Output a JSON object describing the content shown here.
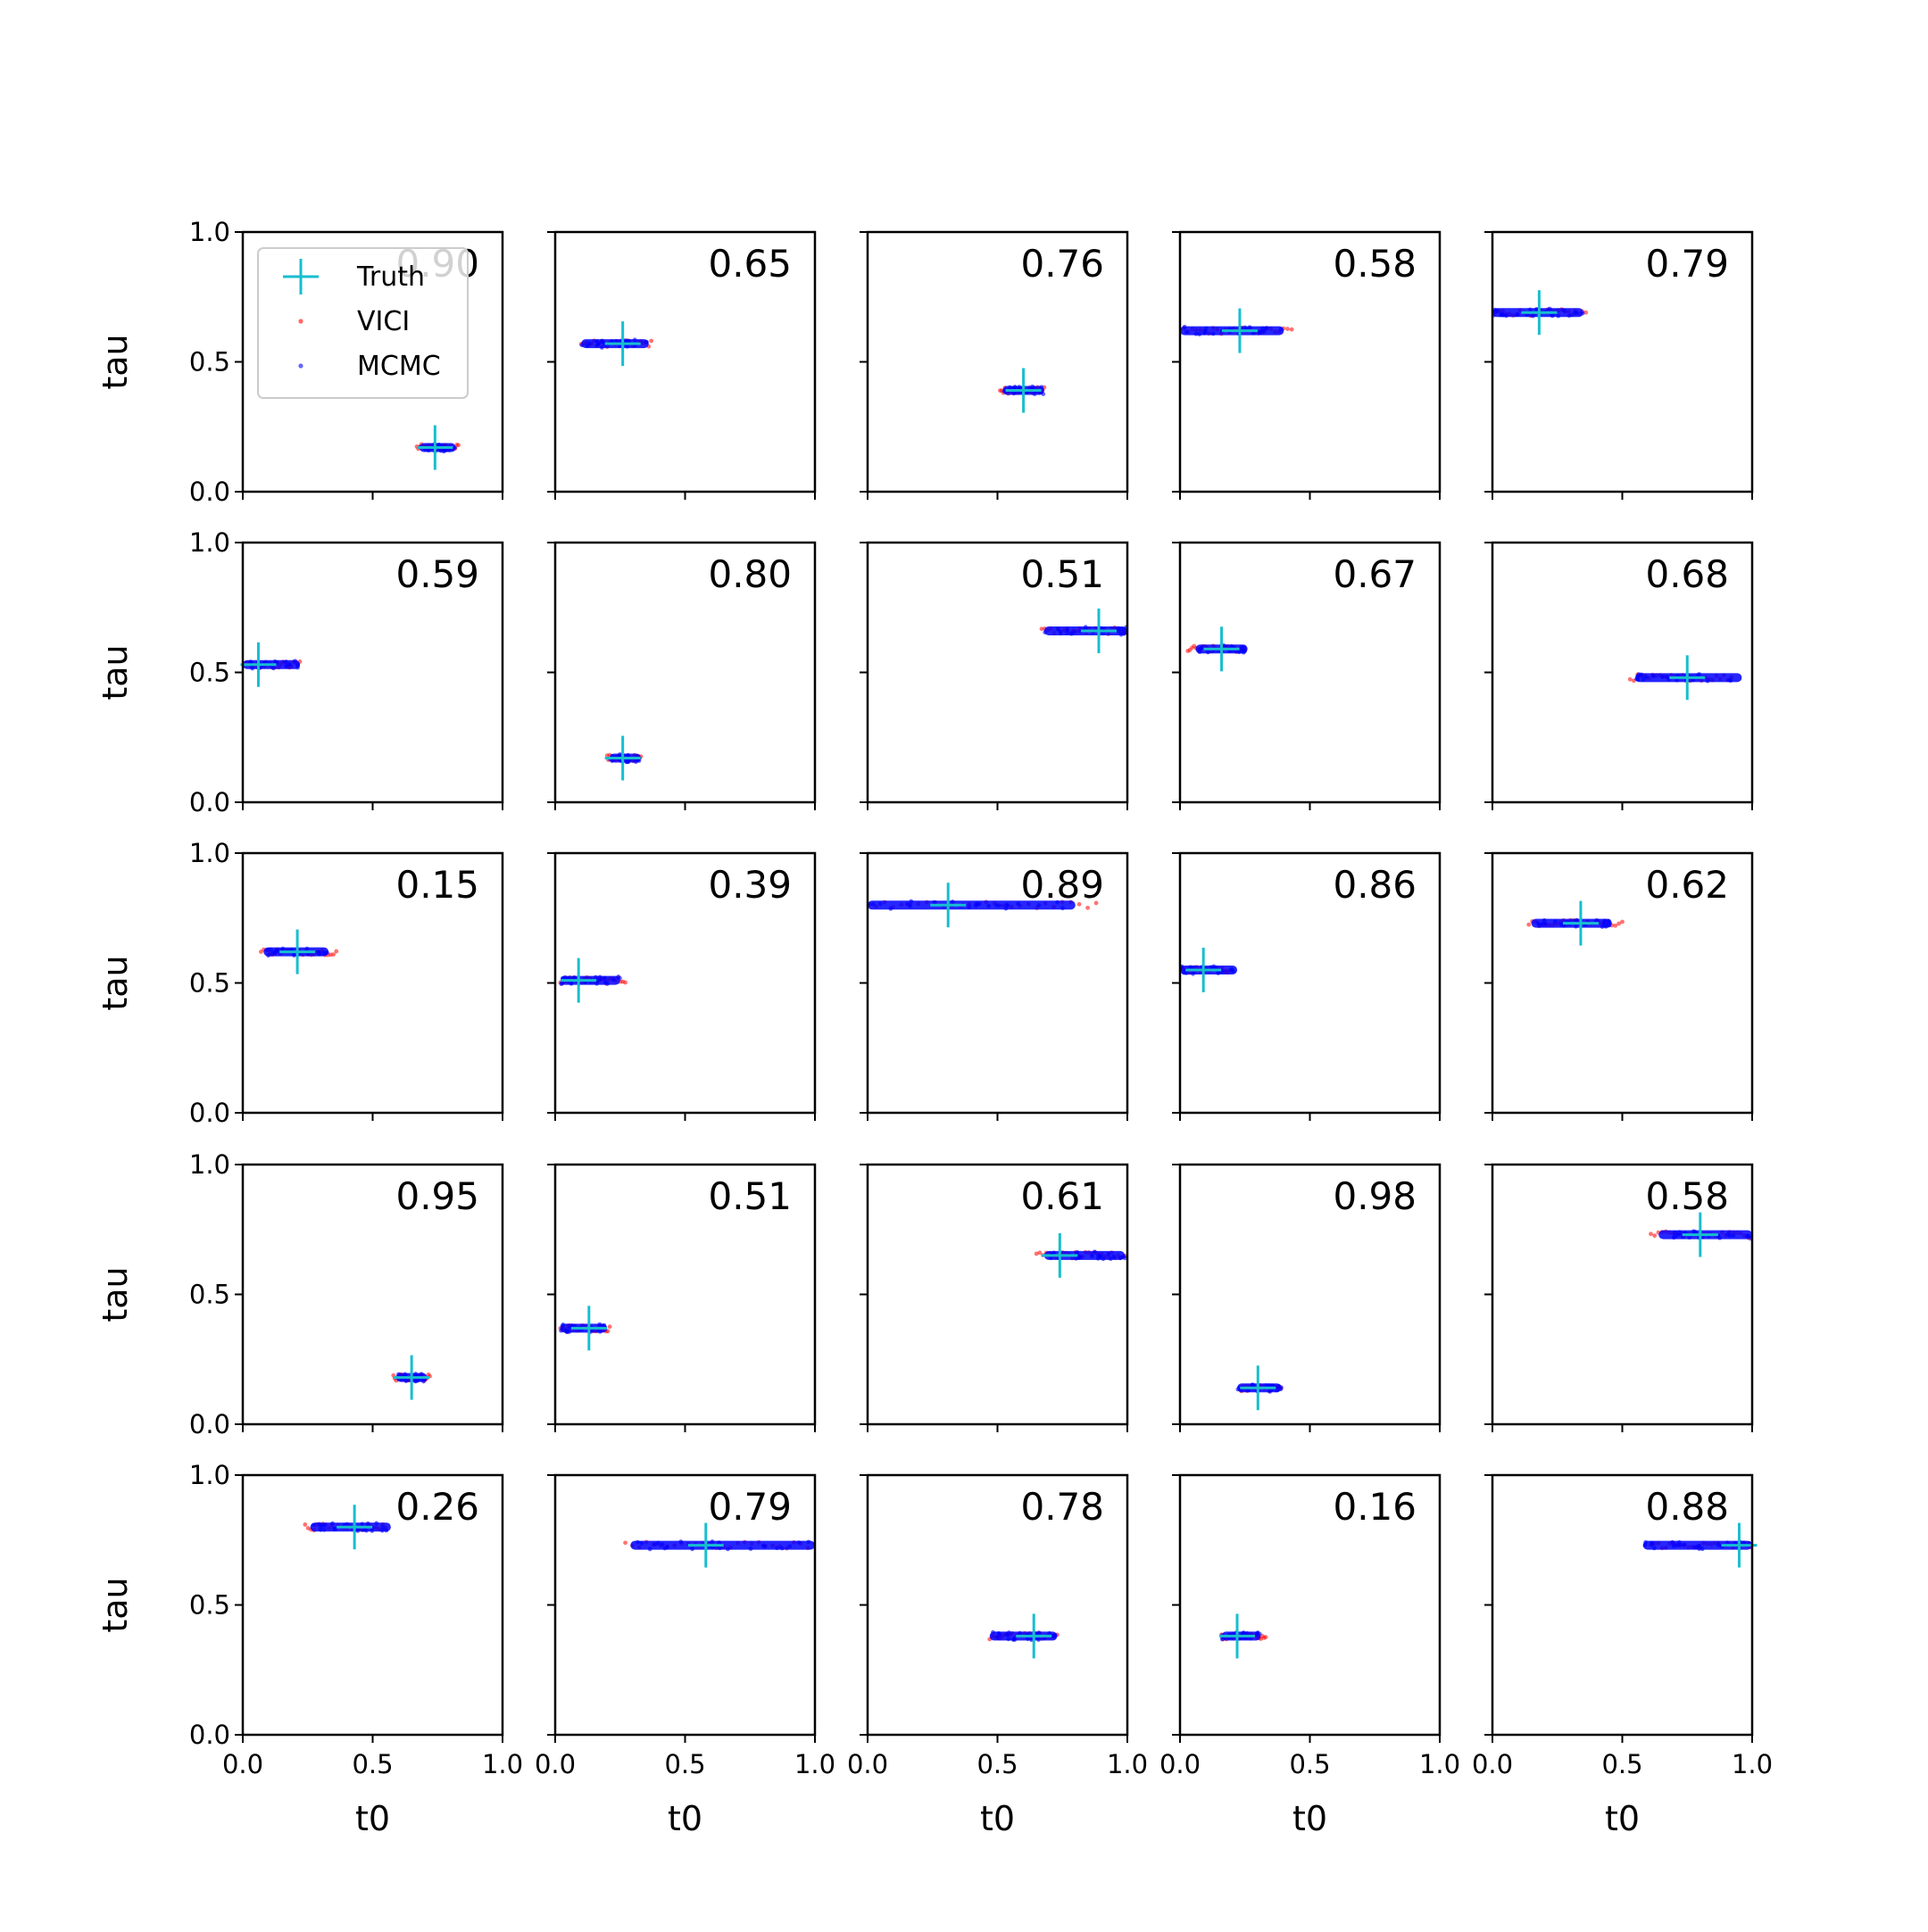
{
  "chart_data": {
    "type": "scatter",
    "layout": {
      "rows": 5,
      "cols": 5
    },
    "x_label": "t0",
    "y_label": "tau",
    "xlim": [
      0,
      1
    ],
    "ylim": [
      0,
      1
    ],
    "x_ticks": [
      "0.0",
      "0.5",
      "1.0"
    ],
    "y_ticks": [
      "0.0",
      "0.5",
      "1.0"
    ],
    "legend": {
      "location": "top-left of first panel",
      "entries": [
        {
          "label": "Truth",
          "marker": "plus",
          "color": "#17becf"
        },
        {
          "label": "VICI",
          "marker": "dot",
          "color": "#ff0000"
        },
        {
          "label": "MCMC",
          "marker": "dot",
          "color": "#0000ff"
        }
      ]
    },
    "colors": {
      "truth": "#17becf",
      "vici": "#ff0000",
      "mcmc": "#0000ff"
    },
    "panels": [
      {
        "score": "0.90",
        "truth": [
          0.74,
          0.17
        ],
        "mcmc": [
          0.68,
          0.82
        ],
        "vici": [
          0.67,
          0.83
        ]
      },
      {
        "score": "0.65",
        "truth": [
          0.26,
          0.57
        ],
        "mcmc": [
          0.1,
          0.36
        ],
        "vici": [
          0.1,
          0.37
        ]
      },
      {
        "score": "0.76",
        "truth": [
          0.6,
          0.39
        ],
        "mcmc": [
          0.52,
          0.68
        ],
        "vici": [
          0.51,
          0.68
        ]
      },
      {
        "score": "0.58",
        "truth": [
          0.23,
          0.62
        ],
        "mcmc": [
          0.0,
          0.4
        ],
        "vici": [
          0.0,
          0.43
        ]
      },
      {
        "score": "0.79",
        "truth": [
          0.18,
          0.69
        ],
        "mcmc": [
          0.0,
          0.35
        ],
        "vici": [
          0.0,
          0.36
        ]
      },
      {
        "score": "0.59",
        "truth": [
          0.06,
          0.53
        ],
        "mcmc": [
          0.0,
          0.22
        ],
        "vici": [
          0.0,
          0.22
        ]
      },
      {
        "score": "0.80",
        "truth": [
          0.26,
          0.17
        ],
        "mcmc": [
          0.21,
          0.33
        ],
        "vici": [
          0.2,
          0.33
        ]
      },
      {
        "score": "0.51",
        "truth": [
          0.89,
          0.66
        ],
        "mcmc": [
          0.68,
          1.0
        ],
        "vici": [
          0.67,
          1.0
        ]
      },
      {
        "score": "0.67",
        "truth": [
          0.16,
          0.59
        ],
        "mcmc": [
          0.06,
          0.26
        ],
        "vici": [
          0.03,
          0.25
        ]
      },
      {
        "score": "0.68",
        "truth": [
          0.75,
          0.48
        ],
        "mcmc": [
          0.55,
          0.96
        ],
        "vici": [
          0.53,
          0.92
        ]
      },
      {
        "score": "0.15",
        "truth": [
          0.21,
          0.62
        ],
        "mcmc": [
          0.08,
          0.33
        ],
        "vici": [
          0.07,
          0.36
        ]
      },
      {
        "score": "0.39",
        "truth": [
          0.09,
          0.51
        ],
        "mcmc": [
          0.02,
          0.25
        ],
        "vici": [
          0.02,
          0.27
        ]
      },
      {
        "score": "0.89",
        "truth": [
          0.31,
          0.8
        ],
        "mcmc": [
          0.0,
          0.8
        ],
        "vici": [
          0.0,
          0.88
        ]
      },
      {
        "score": "0.86",
        "truth": [
          0.09,
          0.55
        ],
        "mcmc": [
          0.0,
          0.22
        ],
        "vici": [
          0.0,
          0.19
        ]
      },
      {
        "score": "0.62",
        "truth": [
          0.34,
          0.73
        ],
        "mcmc": [
          0.15,
          0.46
        ],
        "vici": [
          0.14,
          0.5
        ]
      },
      {
        "score": "0.95",
        "truth": [
          0.65,
          0.18
        ],
        "mcmc": [
          0.59,
          0.71
        ],
        "vici": [
          0.58,
          0.72
        ]
      },
      {
        "score": "0.51",
        "truth": [
          0.13,
          0.37
        ],
        "mcmc": [
          0.02,
          0.2
        ],
        "vici": [
          0.02,
          0.21
        ]
      },
      {
        "score": "0.61",
        "truth": [
          0.74,
          0.65
        ],
        "mcmc": [
          0.68,
          0.99
        ],
        "vici": [
          0.65,
          0.99
        ]
      },
      {
        "score": "0.98",
        "truth": [
          0.3,
          0.14
        ],
        "mcmc": [
          0.22,
          0.39
        ],
        "vici": [
          0.23,
          0.39
        ]
      },
      {
        "score": "0.58",
        "truth": [
          0.8,
          0.73
        ],
        "mcmc": [
          0.64,
          1.0
        ],
        "vici": [
          0.61,
          1.0
        ]
      },
      {
        "score": "0.26",
        "truth": [
          0.43,
          0.8
        ],
        "mcmc": [
          0.26,
          0.57
        ],
        "vici": [
          0.24,
          0.55
        ]
      },
      {
        "score": "0.79",
        "truth": [
          0.58,
          0.73
        ],
        "mcmc": [
          0.29,
          1.0
        ],
        "vici": [
          0.27,
          1.0
        ]
      },
      {
        "score": "0.78",
        "truth": [
          0.64,
          0.38
        ],
        "mcmc": [
          0.47,
          0.73
        ],
        "vici": [
          0.47,
          0.73
        ]
      },
      {
        "score": "0.16",
        "truth": [
          0.22,
          0.38
        ],
        "mcmc": [
          0.16,
          0.31
        ],
        "vici": [
          0.16,
          0.33
        ]
      },
      {
        "score": "0.88",
        "truth": [
          0.95,
          0.73
        ],
        "mcmc": [
          0.58,
          1.0
        ],
        "vici": [
          0.61,
          1.0
        ]
      }
    ]
  }
}
